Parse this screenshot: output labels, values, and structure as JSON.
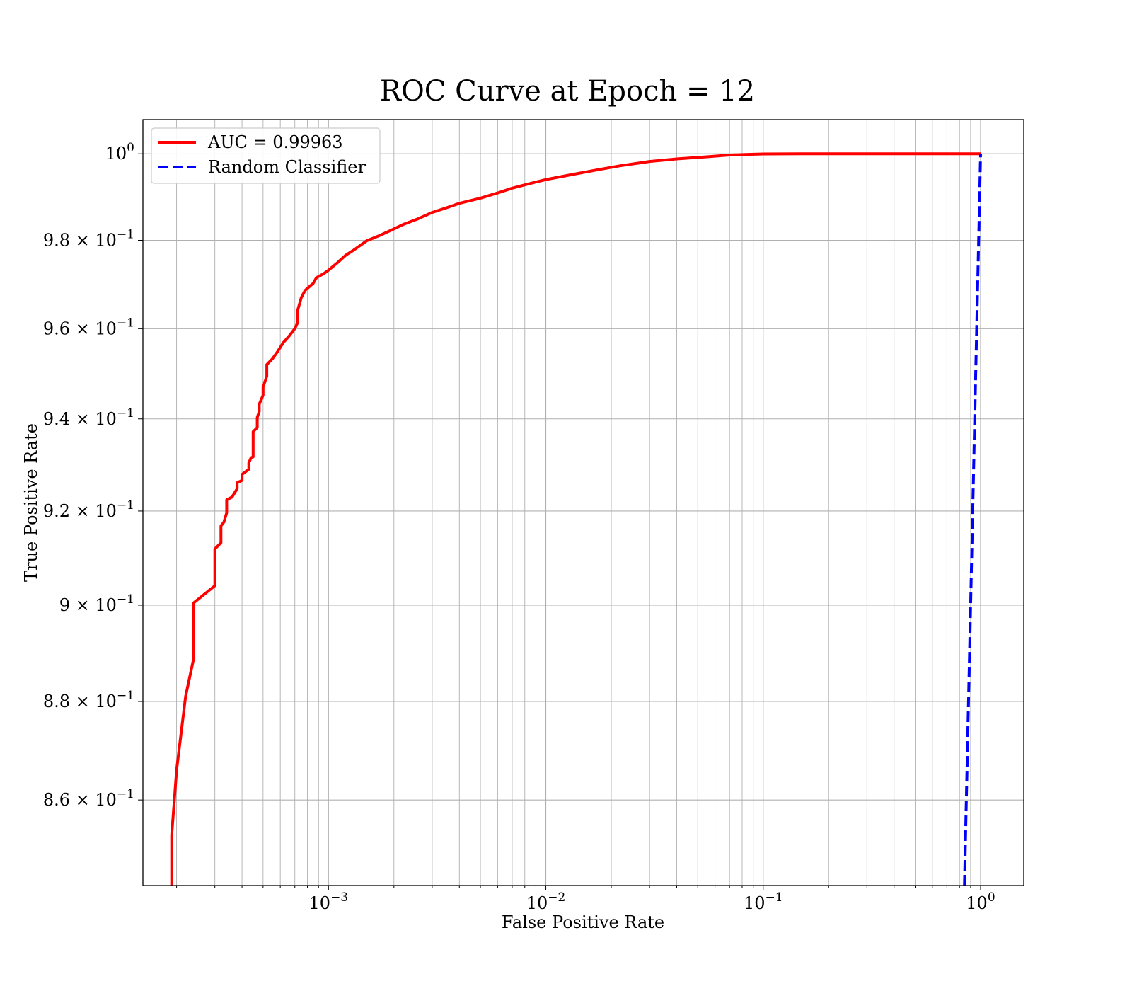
{
  "chart_data": {
    "type": "line",
    "title": "ROC Curve at Epoch = 12",
    "xlabel": "False Positive Rate",
    "ylabel": "True Positive Rate",
    "xscale": "log",
    "yscale": "log",
    "xlim": [
      0.00014,
      1.58
    ],
    "ylim": [
      0.843,
      1.008
    ],
    "grid": true,
    "legend_placement": "upper-left",
    "x_ticks": [
      {
        "value": 0.001,
        "base": "10",
        "exp": "−3"
      },
      {
        "value": 0.01,
        "base": "10",
        "exp": "−2"
      },
      {
        "value": 0.1,
        "base": "10",
        "exp": "−1"
      },
      {
        "value": 1,
        "base": "10",
        "exp": "0"
      }
    ],
    "y_ticks": [
      {
        "value": 1.0,
        "mant": "",
        "base": "10",
        "exp": "0"
      },
      {
        "value": 0.98,
        "mant": "9.8",
        "base": "10",
        "exp": "−1"
      },
      {
        "value": 0.96,
        "mant": "9.6",
        "base": "10",
        "exp": "−1"
      },
      {
        "value": 0.94,
        "mant": "9.4",
        "base": "10",
        "exp": "−1"
      },
      {
        "value": 0.92,
        "mant": "9.2",
        "base": "10",
        "exp": "−1"
      },
      {
        "value": 0.9,
        "mant": "9",
        "base": "10",
        "exp": "−1"
      },
      {
        "value": 0.88,
        "mant": "8.8",
        "base": "10",
        "exp": "−1"
      },
      {
        "value": 0.86,
        "mant": "8.6",
        "base": "10",
        "exp": "−1"
      }
    ],
    "series": [
      {
        "name": "AUC = 0.99963",
        "color": "#ff0000",
        "dash": "solid",
        "x": [
          0.00019,
          0.00019,
          0.0002,
          0.00022,
          0.00024,
          0.00024,
          0.0003,
          0.0003,
          0.00032,
          0.00032,
          0.00033,
          0.00034,
          0.00034,
          0.00036,
          0.00038,
          0.00038,
          0.0004,
          0.0004,
          0.00043,
          0.00043,
          0.00044,
          0.00045,
          0.00045,
          0.00047,
          0.00047,
          0.00048,
          0.00048,
          0.0005,
          0.0005,
          0.00052,
          0.00052,
          0.00055,
          0.00058,
          0.00062,
          0.00066,
          0.0007,
          0.00072,
          0.00072,
          0.00075,
          0.00078,
          0.00085,
          0.00088,
          0.00095,
          0.001,
          0.0011,
          0.0012,
          0.0013,
          0.0015,
          0.0017,
          0.0019,
          0.0022,
          0.0026,
          0.003,
          0.0035,
          0.004,
          0.005,
          0.006,
          0.007,
          0.0085,
          0.01,
          0.013,
          0.017,
          0.022,
          0.03,
          0.04,
          0.055,
          0.07,
          0.085,
          0.1,
          0.15,
          0.25,
          0.4,
          0.6,
          1.0
        ],
        "y": [
          0.843,
          0.853,
          0.866,
          0.881,
          0.889,
          0.9005,
          0.9041,
          0.9119,
          0.9132,
          0.9168,
          0.9176,
          0.9196,
          0.9224,
          0.923,
          0.9248,
          0.9261,
          0.9266,
          0.9279,
          0.929,
          0.9304,
          0.9315,
          0.9317,
          0.9372,
          0.9381,
          0.9403,
          0.9416,
          0.9432,
          0.9452,
          0.947,
          0.9494,
          0.952,
          0.9532,
          0.9547,
          0.9569,
          0.9584,
          0.96,
          0.9613,
          0.964,
          0.967,
          0.9686,
          0.9702,
          0.9715,
          0.9724,
          0.9732,
          0.9749,
          0.9766,
          0.9777,
          0.9799,
          0.981,
          0.9821,
          0.9836,
          0.985,
          0.9864,
          0.9875,
          0.9885,
          0.9897,
          0.9909,
          0.992,
          0.9931,
          0.994,
          0.9951,
          0.9962,
          0.9972,
          0.9982,
          0.9988,
          0.9993,
          0.9997,
          0.99985,
          0.99995,
          1.0,
          1.0,
          1.0,
          1.0,
          1.0
        ]
      },
      {
        "name": "Random Classifier",
        "color": "#0000ff",
        "dash": "dashed",
        "x": [
          0.843,
          0.87,
          0.9,
          0.93,
          0.96,
          1.0
        ],
        "y": [
          0.843,
          0.87,
          0.9,
          0.93,
          0.96,
          1.0
        ]
      }
    ]
  }
}
